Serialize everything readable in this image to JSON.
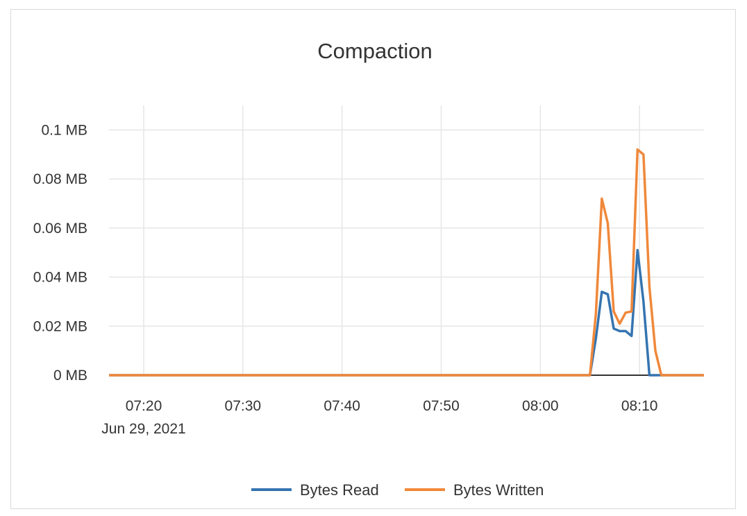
{
  "chart_data": {
    "type": "line",
    "title": "Compaction",
    "date_label": "Jun 29, 2021",
    "xlim": [
      "07:16:30",
      "08:16:30"
    ],
    "ylim": [
      0,
      0.11
    ],
    "y_unit": "MB",
    "x_ticks": [
      "07:20",
      "07:30",
      "07:40",
      "07:50",
      "08:00",
      "08:10"
    ],
    "y_ticks": [
      {
        "value": 0,
        "label": "0 MB"
      },
      {
        "value": 0.02,
        "label": "0.02 MB"
      },
      {
        "value": 0.04,
        "label": "0.04 MB"
      },
      {
        "value": 0.06,
        "label": "0.06 MB"
      },
      {
        "value": 0.08,
        "label": "0.08 MB"
      },
      {
        "value": 0.1,
        "label": "0.1 MB"
      }
    ],
    "grid": true,
    "legend_position": "bottom",
    "x": [
      "07:16:30",
      "08:05:00",
      "08:05:36",
      "08:06:12",
      "08:06:48",
      "08:07:24",
      "08:08:00",
      "08:08:36",
      "08:09:12",
      "08:09:48",
      "08:10:24",
      "08:11:00",
      "08:11:36",
      "08:12:12",
      "08:16:30"
    ],
    "series": [
      {
        "name": "Bytes Read",
        "color": "#3574b0",
        "values": [
          0,
          0,
          0.015,
          0.034,
          0.033,
          0.019,
          0.018,
          0.018,
          0.016,
          0.051,
          0.03,
          0,
          0,
          0,
          0
        ]
      },
      {
        "name": "Bytes Written",
        "color": "#f0883a",
        "values": [
          0,
          0,
          0.025,
          0.072,
          0.062,
          0.026,
          0.021,
          0.0255,
          0.026,
          0.092,
          0.09,
          0.036,
          0.01,
          0,
          0
        ]
      }
    ]
  }
}
